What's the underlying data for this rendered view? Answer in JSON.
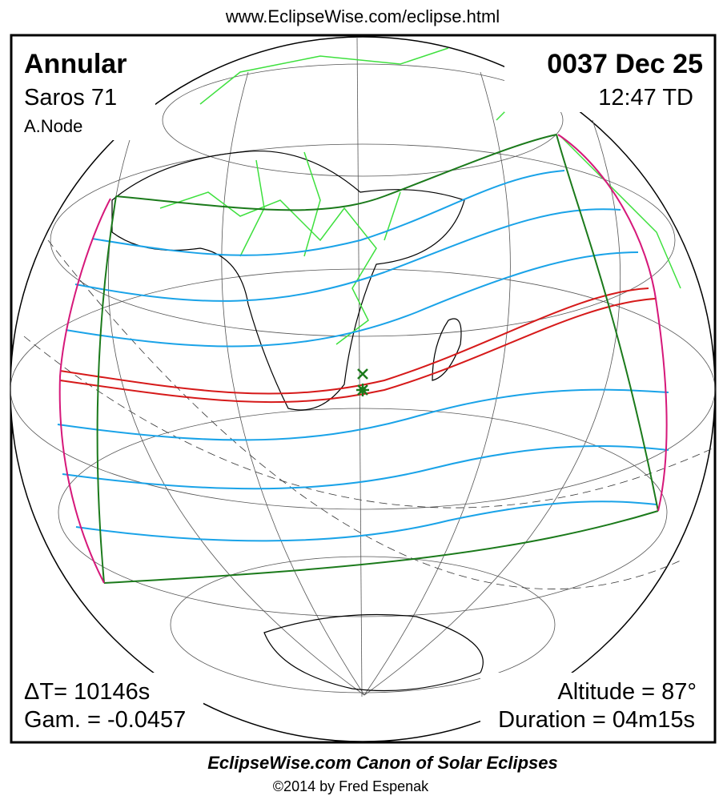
{
  "header": {
    "url": "www.EclipseWise.com/eclipse.html"
  },
  "info": {
    "type": "Annular",
    "saros": "Saros  71",
    "node": "A.Node",
    "date": "0037 Dec 25",
    "time": "12:47 TD",
    "delta_t": "ΔT=  10146s",
    "gamma": "Gam. = -0.0457",
    "altitude": "Altitude = 87°",
    "duration": "Duration = 04m15s"
  },
  "footer": {
    "title": "EclipseWise.com Canon of Solar Eclipses",
    "copyright": "©2014 by Fred Espenak"
  }
}
